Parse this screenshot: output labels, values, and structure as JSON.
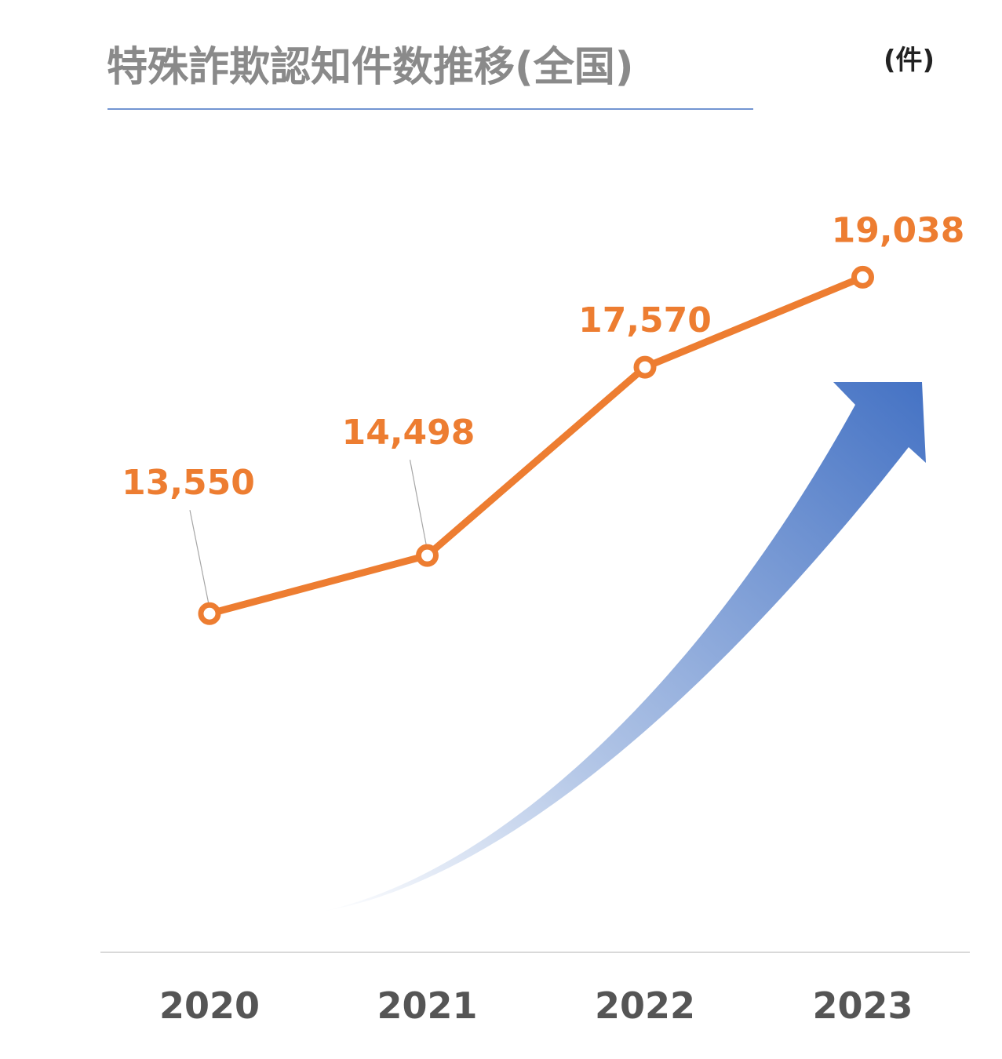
{
  "chart_data": {
    "type": "line",
    "title": "特殊詐欺認知件数推移(全国)",
    "unit": "(件)",
    "categories": [
      "2020",
      "2021",
      "2022",
      "2023"
    ],
    "series": [
      {
        "values": [
          13550,
          14498,
          17570,
          19038
        ],
        "labels": [
          "13,550",
          "14,498",
          "17,570",
          "19,038"
        ]
      }
    ],
    "xlabel": "",
    "ylabel": "",
    "ylim": [
      8000,
      21000
    ],
    "grid": false,
    "legend": "none",
    "colors": {
      "line": "#ED7D31",
      "label": "#ED7D31",
      "arrow_dark": "#4472C4",
      "arrow_light": "#DCE5F5",
      "title_rule": "#4472C4",
      "axis": "#D9D9D9",
      "leader": "#A6A6A6"
    }
  }
}
